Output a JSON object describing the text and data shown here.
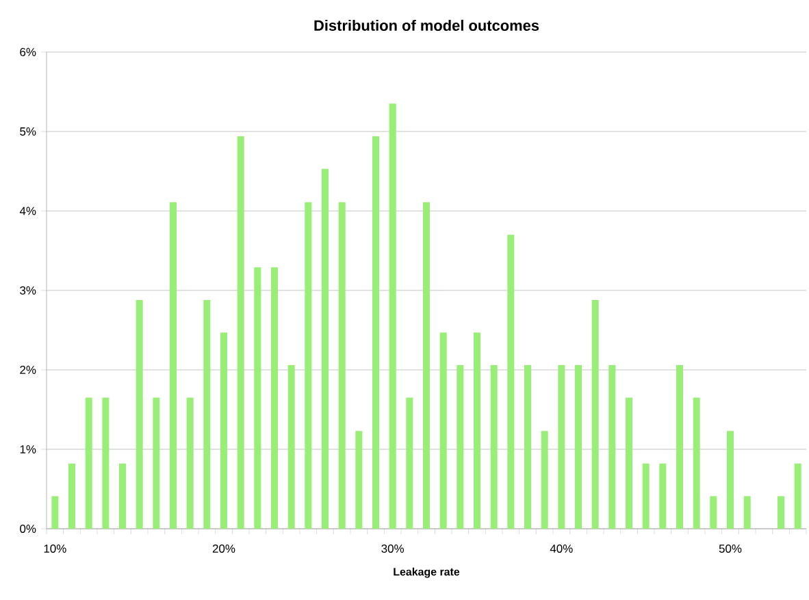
{
  "chart_data": {
    "type": "bar",
    "title": "Distribution of model outcomes",
    "xlabel": "Leakage rate",
    "categories": [
      "10%",
      null,
      null,
      null,
      null,
      null,
      null,
      null,
      null,
      null,
      "20%",
      null,
      null,
      null,
      null,
      null,
      null,
      null,
      null,
      null,
      "30%",
      null,
      null,
      null,
      null,
      null,
      null,
      null,
      null,
      null,
      "40%",
      null,
      null,
      null,
      null,
      null,
      null,
      null,
      null,
      null,
      "50%",
      null,
      null,
      null,
      null
    ],
    "values": [
      0.41,
      0.82,
      1.65,
      1.65,
      0.82,
      2.88,
      1.65,
      4.11,
      1.65,
      2.88,
      2.47,
      4.94,
      3.29,
      3.29,
      2.06,
      4.11,
      4.53,
      4.11,
      1.23,
      4.94,
      5.35,
      1.65,
      4.11,
      2.47,
      2.06,
      2.47,
      2.06,
      3.7,
      2.06,
      1.23,
      2.06,
      2.06,
      2.88,
      2.06,
      1.65,
      0.82,
      0.82,
      2.06,
      1.65,
      0.41,
      1.23,
      0.41,
      0,
      0.41,
      0.82
    ],
    "color": "#99ee77",
    "ylim": [
      0,
      6
    ],
    "yticks": [
      {
        "value": 0,
        "label": "0%"
      },
      {
        "value": 1,
        "label": "1%"
      },
      {
        "value": 2,
        "label": "2%"
      },
      {
        "value": 3,
        "label": "3%"
      },
      {
        "value": 4,
        "label": "4%"
      },
      {
        "value": 5,
        "label": "5%"
      },
      {
        "value": 6,
        "label": "6%"
      }
    ],
    "grid": "y"
  }
}
